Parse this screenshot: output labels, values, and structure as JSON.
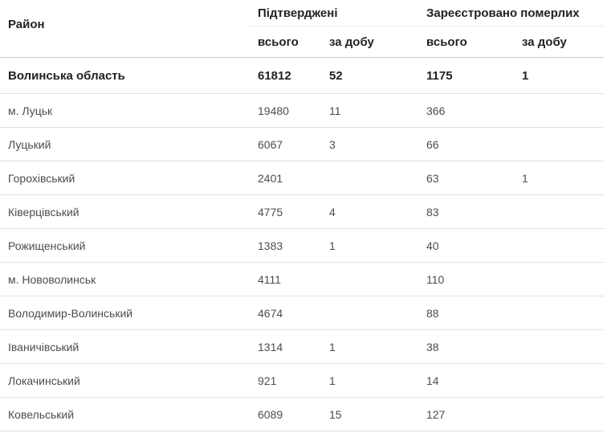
{
  "accent_colors": {
    "header_text": "#222222",
    "body_text": "#4d4d4d",
    "row_border": "#e2e2e2",
    "header_border": "#cdcdcd",
    "group_underline": "#ebebeb"
  },
  "table": {
    "header": {
      "district": "Район",
      "confirmed_group": "Підтверджені",
      "deaths_group": "Зареєстровано померлих",
      "total_label": "всього",
      "per_day_label": "за добу"
    },
    "rows": [
      {
        "district": "Волинська область",
        "confirmed_total": "61812",
        "confirmed_day": "52",
        "deaths_total": "1175",
        "deaths_day": "1"
      },
      {
        "district": "м. Луцьк",
        "confirmed_total": "19480",
        "confirmed_day": "11",
        "deaths_total": "366",
        "deaths_day": ""
      },
      {
        "district": "Луцький",
        "confirmed_total": "6067",
        "confirmed_day": "3",
        "deaths_total": "66",
        "deaths_day": ""
      },
      {
        "district": "Горохівський",
        "confirmed_total": "2401",
        "confirmed_day": "",
        "deaths_total": "63",
        "deaths_day": "1"
      },
      {
        "district": "Ківерцівський",
        "confirmed_total": "4775",
        "confirmed_day": "4",
        "deaths_total": "83",
        "deaths_day": ""
      },
      {
        "district": "Рожищенський",
        "confirmed_total": "1383",
        "confirmed_day": "1",
        "deaths_total": "40",
        "deaths_day": ""
      },
      {
        "district": "м. Нововолинськ",
        "confirmed_total": "4111",
        "confirmed_day": "",
        "deaths_total": "110",
        "deaths_day": ""
      },
      {
        "district": "Володимир-Волинський",
        "confirmed_total": "4674",
        "confirmed_day": "",
        "deaths_total": "88",
        "deaths_day": ""
      },
      {
        "district": "Іваничівський",
        "confirmed_total": "1314",
        "confirmed_day": "1",
        "deaths_total": "38",
        "deaths_day": ""
      },
      {
        "district": "Локачинський",
        "confirmed_total": "921",
        "confirmed_day": "1",
        "deaths_total": "14",
        "deaths_day": ""
      },
      {
        "district": "Ковельський",
        "confirmed_total": "6089",
        "confirmed_day": "15",
        "deaths_total": "127",
        "deaths_day": ""
      }
    ]
  },
  "chart_data": {
    "type": "table",
    "title": "Підтверджені та зареєстровані померлі за районами (Волинська область)",
    "columns": [
      "Район",
      "Підтверджені всього",
      "Підтверджені за добу",
      "Зареєстровано померлих всього",
      "Зареєстровано померлих за добу"
    ],
    "rows": [
      [
        "Волинська область",
        61812,
        52,
        1175,
        1
      ],
      [
        "м. Луцьк",
        19480,
        11,
        366,
        null
      ],
      [
        "Луцький",
        6067,
        3,
        66,
        null
      ],
      [
        "Горохівський",
        2401,
        null,
        63,
        1
      ],
      [
        "Ківерцівський",
        4775,
        4,
        83,
        null
      ],
      [
        "Рожищенський",
        1383,
        1,
        40,
        null
      ],
      [
        "м. Нововолинськ",
        4111,
        null,
        110,
        null
      ],
      [
        "Володимир-Волинський",
        4674,
        null,
        88,
        null
      ],
      [
        "Іваничівський",
        1314,
        1,
        38,
        null
      ],
      [
        "Локачинський",
        921,
        1,
        14,
        null
      ],
      [
        "Ковельський",
        6089,
        15,
        127,
        null
      ]
    ]
  }
}
